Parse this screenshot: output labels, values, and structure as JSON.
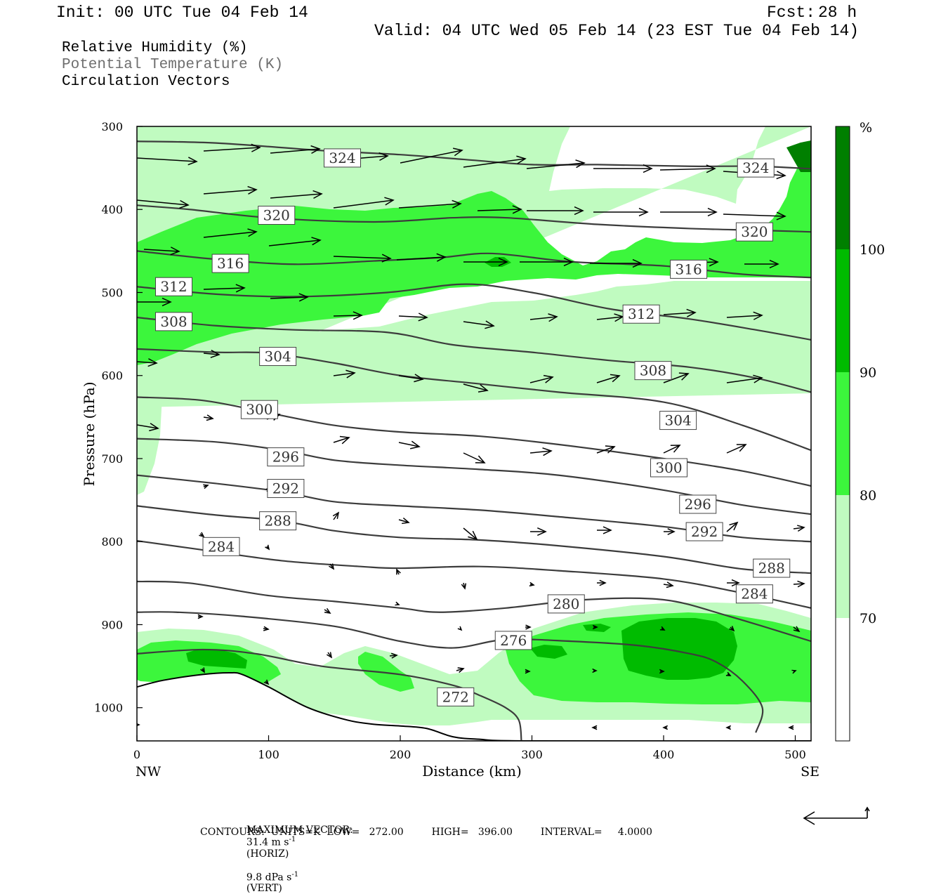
{
  "header": {
    "init": "Init: 00 UTC Tue 04 Feb 14",
    "fcst_label": "Fcst:",
    "fcst_value": "28 h",
    "valid": "Valid: 04 UTC Wed 05 Feb 14 (23 EST Tue 04 Feb 14)"
  },
  "legend": {
    "rh": "Relative Humidity (%)",
    "theta": "Potential Temperature (K)",
    "vectors": "Circulation Vectors"
  },
  "colors": {
    "rh70": "#c0fbc0",
    "rh80": "#3cf63c",
    "rh90": "#00bb00",
    "rh100": "#007f00",
    "contour": "#3c3c3c"
  },
  "chart_data": {
    "type": "contour",
    "xlabel": "Distance (km)",
    "ylabel": "Pressure (hPa)",
    "xlim": [
      0,
      512
    ],
    "ylim": [
      1040,
      300
    ],
    "x_ticks": [
      "0",
      "100",
      "200",
      "300",
      "400",
      "500"
    ],
    "x_tick_values": [
      0,
      100,
      200,
      300,
      400,
      500
    ],
    "y_ticks": [
      "300",
      "400",
      "500",
      "600",
      "700",
      "800",
      "900",
      "1000"
    ],
    "y_tick_values": [
      300,
      400,
      500,
      600,
      700,
      800,
      900,
      1000
    ],
    "left_end": "NW",
    "right_end": "SE",
    "colorbar": {
      "unit": "%",
      "levels": [
        "70",
        "80",
        "90",
        "100"
      ],
      "level_values": [
        70,
        80,
        90,
        100
      ]
    },
    "contour_interval_K": 4,
    "isentropes": [
      {
        "value": 324,
        "points": [
          [
            0,
            318
          ],
          [
            60,
            320
          ],
          [
            140,
            329
          ],
          [
            200,
            334
          ],
          [
            250,
            340
          ],
          [
            300,
            346
          ],
          [
            350,
            346
          ],
          [
            420,
            348
          ],
          [
            470,
            348
          ],
          [
            512,
            351
          ]
        ],
        "labels": [
          [
            156,
            338
          ],
          [
            470,
            350
          ]
        ]
      },
      {
        "value": 320,
        "points": [
          [
            0,
            395
          ],
          [
            40,
            400
          ],
          [
            100,
            410
          ],
          [
            180,
            415
          ],
          [
            240,
            410
          ],
          [
            280,
            410
          ],
          [
            350,
            418
          ],
          [
            420,
            423
          ],
          [
            470,
            425
          ],
          [
            512,
            427
          ]
        ],
        "labels": [
          [
            106,
            407
          ],
          [
            469,
            427
          ]
        ]
      },
      {
        "value": 316,
        "points": [
          [
            0,
            450
          ],
          [
            60,
            460
          ],
          [
            120,
            466
          ],
          [
            180,
            462
          ],
          [
            230,
            458
          ],
          [
            270,
            453
          ],
          [
            330,
            463
          ],
          [
            400,
            468
          ],
          [
            460,
            478
          ],
          [
            512,
            482
          ]
        ],
        "labels": [
          [
            71,
            465
          ],
          [
            419,
            472
          ]
        ]
      },
      {
        "value": 312,
        "points": [
          [
            0,
            493
          ],
          [
            60,
            502
          ],
          [
            120,
            505
          ],
          [
            190,
            500
          ],
          [
            250,
            490
          ],
          [
            300,
            500
          ],
          [
            360,
            520
          ],
          [
            420,
            532
          ],
          [
            470,
            545
          ],
          [
            512,
            557
          ]
        ],
        "labels": [
          [
            28,
            493
          ],
          [
            383,
            526
          ]
        ]
      },
      {
        "value": 308,
        "points": [
          [
            0,
            530
          ],
          [
            60,
            540
          ],
          [
            120,
            545
          ],
          [
            190,
            548
          ],
          [
            240,
            563
          ],
          [
            300,
            572
          ],
          [
            360,
            582
          ],
          [
            420,
            590
          ],
          [
            470,
            603
          ],
          [
            512,
            620
          ]
        ],
        "labels": [
          [
            28,
            535
          ],
          [
            392,
            594
          ]
        ]
      },
      {
        "value": 304,
        "points": [
          [
            0,
            568
          ],
          [
            60,
            572
          ],
          [
            100,
            573
          ],
          [
            150,
            585
          ],
          [
            200,
            600
          ],
          [
            260,
            610
          ],
          [
            320,
            620
          ],
          [
            400,
            632
          ],
          [
            460,
            660
          ],
          [
            512,
            690
          ]
        ],
        "labels": [
          [
            107,
            577
          ],
          [
            411,
            654
          ]
        ]
      },
      {
        "value": 300,
        "points": [
          [
            0,
            626
          ],
          [
            50,
            630
          ],
          [
            100,
            645
          ],
          [
            150,
            660
          ],
          [
            200,
            668
          ],
          [
            260,
            673
          ],
          [
            320,
            683
          ],
          [
            400,
            700
          ],
          [
            460,
            715
          ],
          [
            512,
            733
          ]
        ],
        "labels": [
          [
            93,
            641
          ],
          [
            404,
            711
          ]
        ]
      },
      {
        "value": 296,
        "points": [
          [
            0,
            676
          ],
          [
            60,
            680
          ],
          [
            110,
            690
          ],
          [
            150,
            702
          ],
          [
            200,
            708
          ],
          [
            260,
            713
          ],
          [
            320,
            720
          ],
          [
            400,
            738
          ],
          [
            460,
            756
          ],
          [
            512,
            767
          ]
        ],
        "labels": [
          [
            113,
            698
          ],
          [
            426,
            755
          ]
        ]
      },
      {
        "value": 292,
        "points": [
          [
            0,
            720
          ],
          [
            60,
            730
          ],
          [
            110,
            740
          ],
          [
            150,
            752
          ],
          [
            200,
            757
          ],
          [
            260,
            762
          ],
          [
            320,
            770
          ],
          [
            400,
            782
          ],
          [
            460,
            795
          ],
          [
            512,
            800
          ]
        ],
        "labels": [
          [
            113,
            736
          ],
          [
            431,
            788
          ]
        ]
      },
      {
        "value": 288,
        "points": [
          [
            0,
            757
          ],
          [
            60,
            768
          ],
          [
            110,
            775
          ],
          [
            150,
            787
          ],
          [
            200,
            795
          ],
          [
            260,
            798
          ],
          [
            320,
            805
          ],
          [
            400,
            818
          ],
          [
            460,
            833
          ],
          [
            512,
            838
          ]
        ],
        "labels": [
          [
            107,
            775
          ],
          [
            482,
            832
          ]
        ]
      },
      {
        "value": 284,
        "points": [
          [
            0,
            799
          ],
          [
            50,
            810
          ],
          [
            110,
            823
          ],
          [
            170,
            830
          ],
          [
            200,
            832
          ],
          [
            260,
            830
          ],
          [
            320,
            835
          ],
          [
            400,
            845
          ],
          [
            460,
            862
          ],
          [
            512,
            880
          ]
        ],
        "labels": [
          [
            64,
            806
          ],
          [
            469,
            863
          ]
        ]
      },
      {
        "value": 280,
        "points": [
          [
            0,
            848
          ],
          [
            40,
            850
          ],
          [
            100,
            865
          ],
          [
            150,
            872
          ],
          [
            200,
            880
          ],
          [
            230,
            885
          ],
          [
            280,
            880
          ],
          [
            340,
            870
          ],
          [
            400,
            870
          ],
          [
            450,
            890
          ],
          [
            512,
            920
          ]
        ],
        "labels": [
          [
            326,
            875
          ]
        ]
      },
      {
        "value": 276,
        "points": [
          [
            0,
            885
          ],
          [
            30,
            885
          ],
          [
            80,
            890
          ],
          [
            150,
            902
          ],
          [
            200,
            920
          ],
          [
            240,
            928
          ],
          [
            280,
            918
          ],
          [
            330,
            920
          ],
          [
            380,
            925
          ],
          [
            420,
            935
          ],
          [
            440,
            945
          ],
          [
            460,
            968
          ],
          [
            475,
            1000
          ],
          [
            470,
            1030
          ]
        ],
        "labels": [
          [
            286,
            919
          ]
        ]
      },
      {
        "value": 272,
        "points": [
          [
            0,
            935
          ],
          [
            50,
            930
          ],
          [
            90,
            935
          ],
          [
            140,
            950
          ],
          [
            200,
            960
          ],
          [
            240,
            973
          ],
          [
            260,
            985
          ],
          [
            280,
            1000
          ],
          [
            290,
            1015
          ],
          [
            292,
            1040
          ]
        ],
        "labels": [
          [
            242,
            987
          ]
        ]
      }
    ],
    "terrain": [
      [
        0,
        975
      ],
      [
        20,
        967
      ],
      [
        50,
        960
      ],
      [
        70,
        958
      ],
      [
        80,
        960
      ],
      [
        100,
        975
      ],
      [
        130,
        1000
      ],
      [
        160,
        1015
      ],
      [
        180,
        1020
      ],
      [
        200,
        1022
      ],
      [
        220,
        1025
      ],
      [
        240,
        1035
      ],
      [
        260,
        1038
      ],
      [
        300,
        1040
      ],
      [
        512,
        1040
      ]
    ]
  },
  "footer": {
    "max_vector_label": "MAXIMUM VECTOR:",
    "max_horiz_value": "31.4 m s",
    "max_horiz_unit": "(HORIZ)",
    "max_vert_value": "9.8 dPa s",
    "max_vert_unit": "(VERT)",
    "sup": "-1",
    "contours_line": "CONTOURS:  UNITS=K  LOW=   272.00         HIGH=   396.00         INTERVAL=     4.0000"
  }
}
